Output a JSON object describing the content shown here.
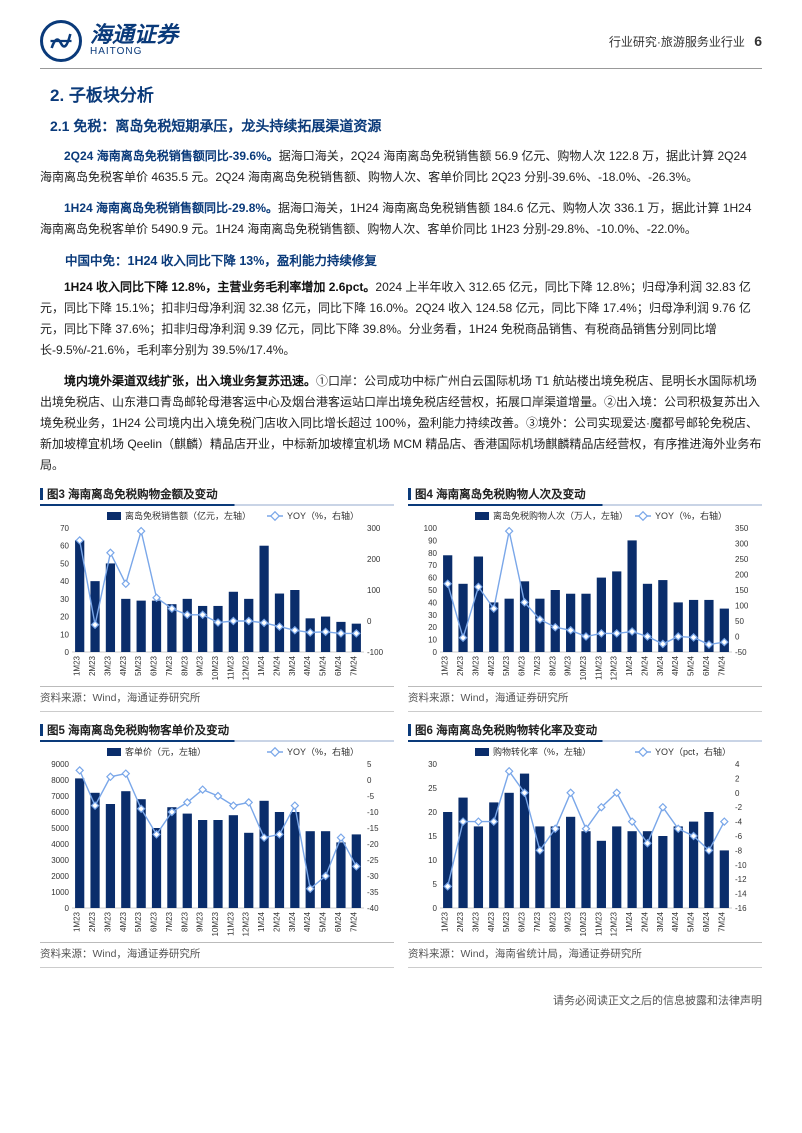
{
  "header": {
    "company_cn": "海通证券",
    "company_en": "HAITONG",
    "breadcrumb": "行业研究·旅游服务业行业",
    "page_number": "6"
  },
  "section": {
    "h2": "2. 子板块分析",
    "h3": "2.1 免税：离岛免税短期承压，龙头持续拓展渠道资源",
    "p1_bold": "2Q24 海南离岛免税销售额同比-39.6%。",
    "p1": "据海口海关，2Q24 海南离岛免税销售额 56.9 亿元、购物人次 122.8 万，据此计算 2Q24 海南离岛免税客单价 4635.5 元。2Q24 海南离岛免税销售额、购物人次、客单价同比 2Q23 分别-39.6%、-18.0%、-26.3%。",
    "p2_bold": "1H24 海南离岛免税销售额同比-29.8%。",
    "p2": "据海口海关，1H24 海南离岛免税销售额 184.6 亿元、购物人次 336.1 万，据此计算 1H24 海南离岛免税客单价 5490.9 元。1H24 海南离岛免税销售额、购物人次、客单价同比 1H23 分别-29.8%、-10.0%、-22.0%。",
    "sub_heading": "中国中免：1H24 收入同比下降 13%，盈利能力持续修复",
    "p3_bold": "1H24 收入同比下降 12.8%，主营业务毛利率增加 2.6pct。",
    "p3": "2024 上半年收入 312.65 亿元，同比下降 12.8%；归母净利润 32.83 亿元，同比下降 15.1%；扣非归母净利润 32.38 亿元，同比下降 16.0%。2Q24 收入 124.58 亿元，同比下降 17.4%；归母净利润 9.76 亿元，同比下降 37.6%；扣非归母净利润 9.39 亿元，同比下降 39.8%。分业务看，1H24 免税商品销售、有税商品销售分别同比增长-9.5%/-21.6%，毛利率分别为 39.5%/17.4%。",
    "p4_bold": "境内境外渠道双线扩张，出入境业务复苏迅速。",
    "p4": "①口岸：公司成功中标广州白云国际机场 T1 航站楼出境免税店、昆明长水国际机场出境免税店、山东港口青岛邮轮母港客运中心及烟台港客运站口岸出境免税店经营权，拓展口岸渠道增量。②出入境：公司积极复苏出入境免税业务，1H24 公司境内出入境免税门店收入同比增长超过 100%，盈利能力持续改善。③境外：公司实现爱达·魔都号邮轮免税店、新加坡樟宜机场 Qeelin（麒麟）精品店开业，中标新加坡樟宜机场 MCM 精品店、香港国际机场麒麟精品店经营权，有序推进海外业务布局。"
  },
  "charts": {
    "categories": [
      "1M23",
      "2M23",
      "3M23",
      "4M23",
      "5M23",
      "6M23",
      "7M23",
      "8M23",
      "9M23",
      "10M23",
      "11M23",
      "12M23",
      "1M24",
      "2M24",
      "3M24",
      "4M24",
      "5M24",
      "6M24",
      "7M24"
    ],
    "bar_color": "#0a2d6b",
    "line_color": "#7aa7e9",
    "axis_color": "#999999",
    "grid_color": "#e5e5e5",
    "tick_fontsize": 8,
    "c3": {
      "title": "图3 海南离岛免税购物金额及变动",
      "legend_bar": "离岛免税销售额（亿元，左轴）",
      "legend_line": "YOY（%，右轴）",
      "y1_min": 0,
      "y1_max": 70,
      "y1_step": 10,
      "y2_min": -100,
      "y2_max": 300,
      "y2_step": 100,
      "bars": [
        63,
        40,
        50,
        30,
        29,
        29,
        27,
        30,
        26,
        26,
        34,
        30,
        60,
        33,
        35,
        19,
        20,
        17,
        16
      ],
      "line": [
        260,
        -12,
        220,
        120,
        290,
        75,
        40,
        20,
        20,
        -5,
        0,
        0,
        -6,
        -18,
        -30,
        -37,
        -35,
        -40,
        -40
      ],
      "source": "资料来源：Wind，海通证券研究所"
    },
    "c4": {
      "title": "图4 海南离岛免税购物人次及变动",
      "legend_bar": "离岛免税购物人次（万人，左轴）",
      "legend_line": "YOY（%，右轴）",
      "y1_min": 0,
      "y1_max": 100,
      "y1_step": 10,
      "y2_min": -50,
      "y2_max": 350,
      "y2_step": 50,
      "bars": [
        78,
        55,
        77,
        40,
        43,
        57,
        43,
        50,
        47,
        47,
        60,
        65,
        90,
        55,
        58,
        40,
        42,
        42,
        35
      ],
      "line": [
        170,
        -4,
        160,
        90,
        340,
        110,
        55,
        30,
        20,
        0,
        10,
        10,
        16,
        0,
        -24,
        0,
        -3,
        -26,
        -18
      ],
      "source": "资料来源：Wind，海通证券研究所"
    },
    "c5": {
      "title": "图5 海南离岛免税购物客单价及变动",
      "legend_bar": "客单价（元，左轴）",
      "legend_line": "YOY（%，右轴）",
      "y1_min": 0,
      "y1_max": 9000,
      "y1_step": 1000,
      "y2_min": -40,
      "y2_max": 5,
      "y2_step": 5,
      "bars": [
        8100,
        7200,
        6500,
        7300,
        6800,
        5000,
        6300,
        5900,
        5500,
        5500,
        5800,
        4700,
        6700,
        6000,
        6000,
        4800,
        4800,
        4100,
        4600
      ],
      "line": [
        3,
        -8,
        1,
        2,
        -9,
        -17,
        -10,
        -7,
        -3,
        -5,
        -8,
        -7,
        -18,
        -17,
        -8,
        -34,
        -30,
        -18,
        -27
      ],
      "source": "资料来源：Wind，海通证券研究所"
    },
    "c6": {
      "title": "图6 海南离岛免税购物转化率及变动",
      "legend_bar": "购物转化率（%，左轴）",
      "legend_line": "YOY（pct，右轴）",
      "y1_min": 0,
      "y1_max": 30,
      "y1_step": 5,
      "y2_min": -16,
      "y2_max": 4,
      "y2_step": 2,
      "bars": [
        20,
        23,
        17,
        22,
        24,
        28,
        17,
        17,
        19,
        16,
        14,
        17,
        16,
        16,
        15,
        17,
        18,
        20,
        12
      ],
      "line": [
        -13,
        -4,
        -4,
        -4,
        3,
        0,
        -8,
        -5,
        0,
        -5,
        -2,
        0,
        -4,
        -7,
        -2,
        -5,
        -6,
        -8,
        -4
      ],
      "source": "资料来源：Wind，海南省统计局，海通证券研究所"
    }
  },
  "footer": "请务必阅读正文之后的信息披露和法律声明"
}
